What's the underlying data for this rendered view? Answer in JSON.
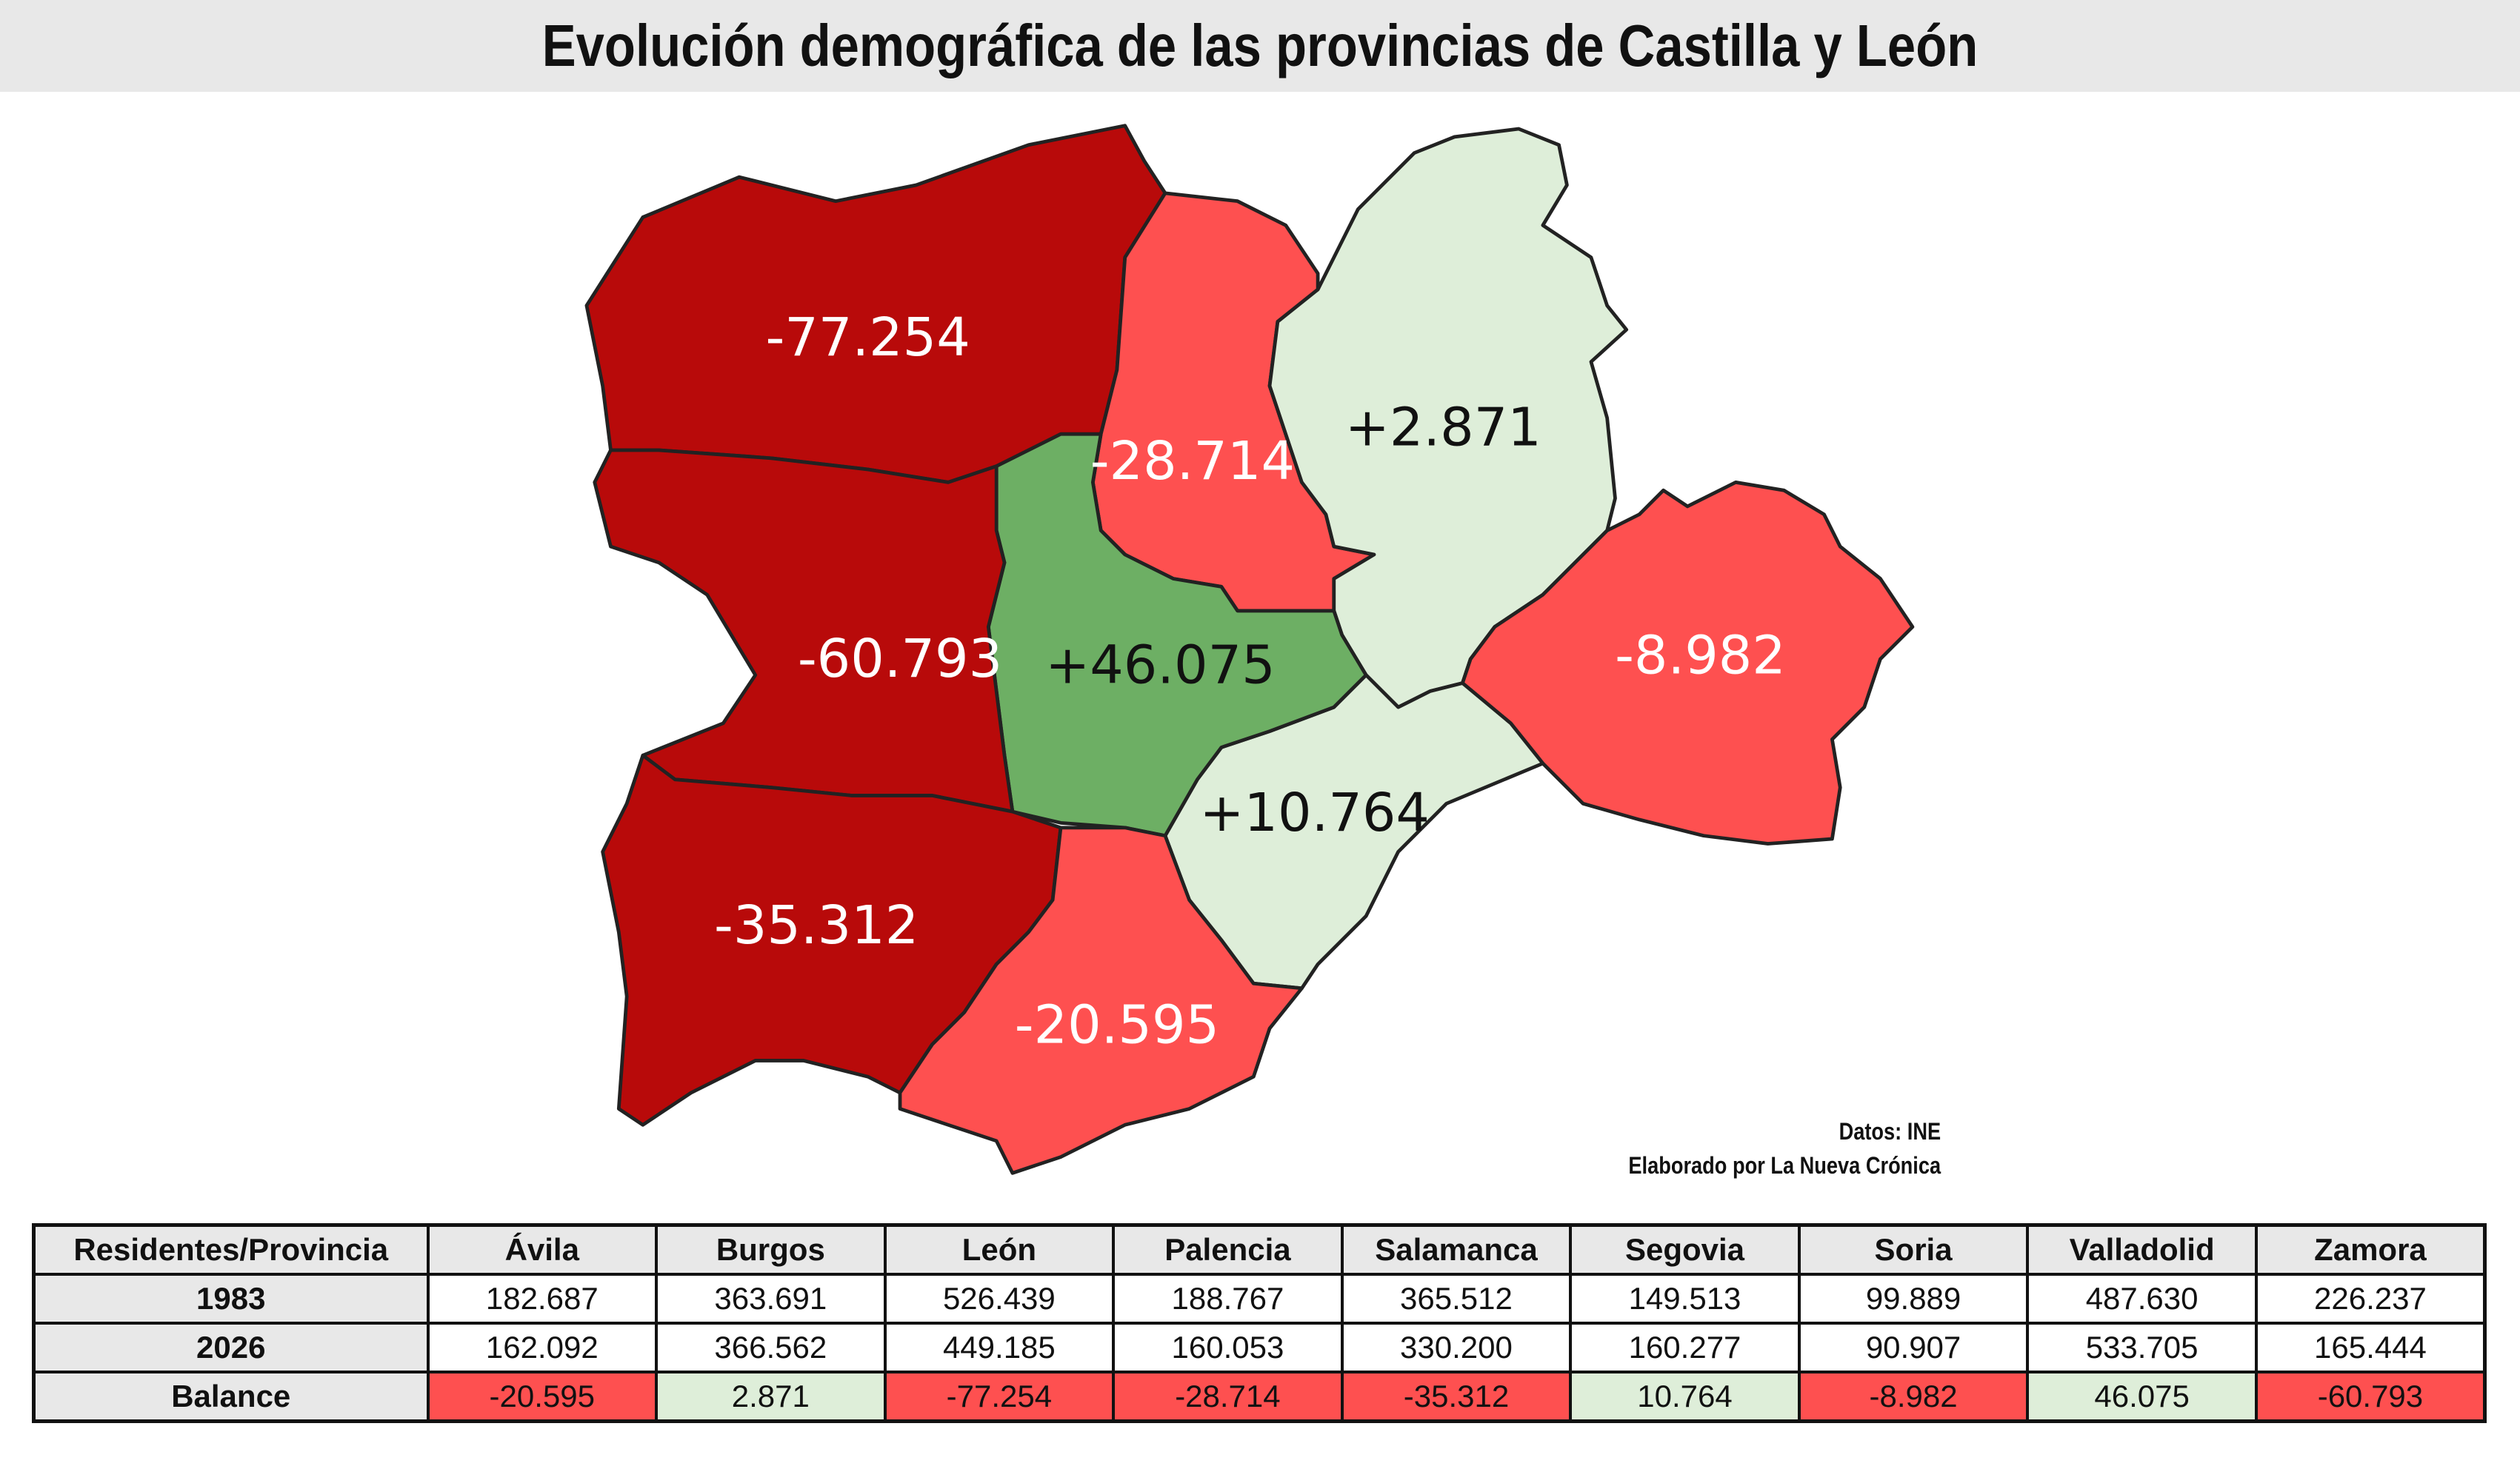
{
  "title": "Evolución demográfica de las provincias de Castilla y León",
  "credits": {
    "source": "Datos: INE",
    "author": "Elaborado por La Nueva Crónica"
  },
  "colors": {
    "strong_loss": "#b80a0a",
    "loss": "#fe5050",
    "small_gain": "#deeed9",
    "strong_gain": "#6daf64"
  },
  "chart_data": {
    "type": "table",
    "map_labels": {
      "leon": "-77.254",
      "palencia": "-28.714",
      "burgos": "+2.871",
      "soria": "-8.982",
      "valladolid": "+46.075",
      "zamora": "-60.793",
      "segovia": "+10.764",
      "salamanca": "-35.312",
      "avila": "-20.595"
    },
    "table": {
      "header": [
        "Residentes/Provincia",
        "Ávila",
        "Burgos",
        "León",
        "Palencia",
        "Salamanca",
        "Segovia",
        "Soria",
        "Valladolid",
        "Zamora"
      ],
      "rows": [
        [
          "1983",
          "182.687",
          "363.691",
          "526.439",
          "188.767",
          "365.512",
          "149.513",
          "99.889",
          "487.630",
          "226.237"
        ],
        [
          "2026",
          "162.092",
          "366.562",
          "449.185",
          "160.053",
          "330.200",
          "160.277",
          "90.907",
          "533.705",
          "165.444"
        ],
        [
          "Balance",
          "-20.595",
          "2.871",
          "-77.254",
          "-28.714",
          "-35.312",
          "10.764",
          "-8.982",
          "46.075",
          "-60.793"
        ]
      ],
      "balance_colors": [
        "#fe5050",
        "#deeed9",
        "#fe5050",
        "#fe5050",
        "#fe5050",
        "#deeed9",
        "#fe5050",
        "#deeed9",
        "#fe5050"
      ]
    }
  }
}
